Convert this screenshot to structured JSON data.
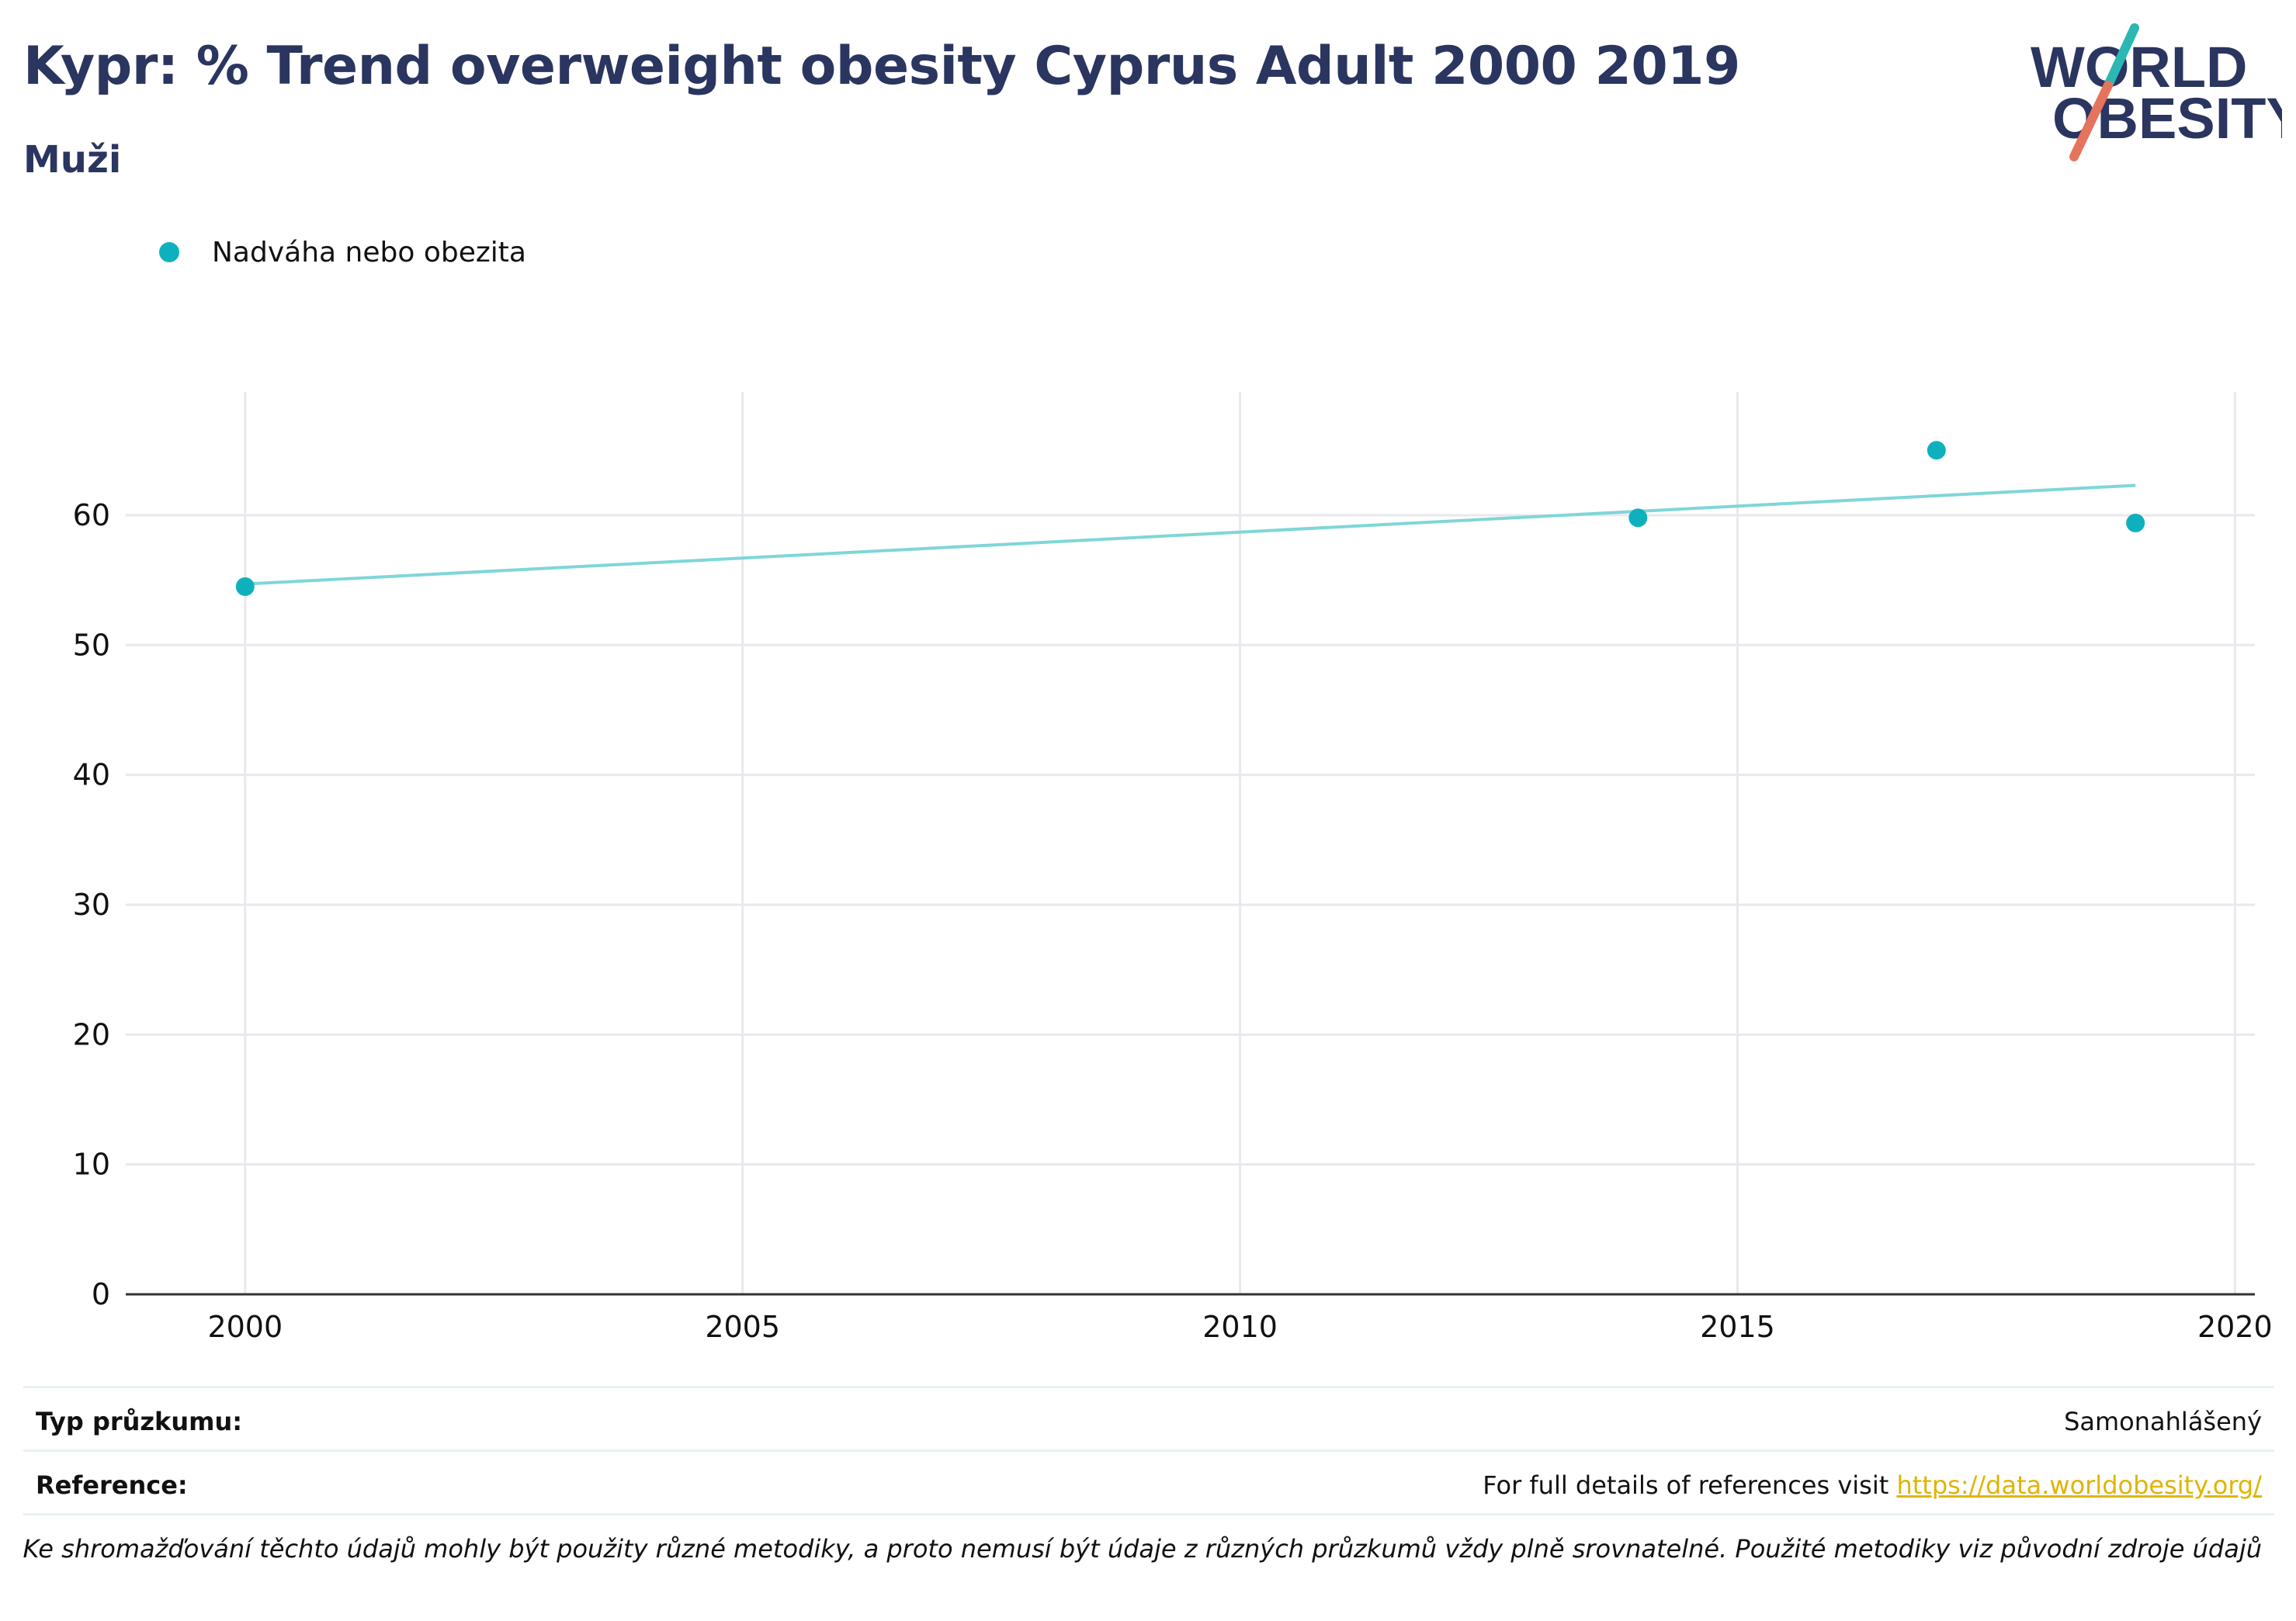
{
  "header": {
    "title": "Kypr: % Trend overweight obesity Cyprus Adult 2000 2019",
    "subtitle": "Muži"
  },
  "logo": {
    "line1": "WORLD",
    "line2": "OBESITY",
    "color_text": "#2a3560",
    "color_slash_top": "#2bb7b3",
    "color_slash_bottom": "#e5735e"
  },
  "colors": {
    "series": "#0fb0bd",
    "trend": "#7fd6d8",
    "grid": "#e8e8ee",
    "axis": "#333333",
    "link": "#e1b400"
  },
  "chart_data": {
    "type": "scatter",
    "legend_position": "top-left",
    "grid": true,
    "series": [
      {
        "name": "Nadváha nebo obezita",
        "x": [
          2000,
          2014,
          2017,
          2019
        ],
        "y": [
          54.5,
          59.8,
          65.0,
          59.4
        ]
      }
    ],
    "trendline": {
      "x": [
        2000,
        2019
      ],
      "y": [
        54.7,
        62.3
      ]
    },
    "xlim": [
      1998.8,
      2020.2
    ],
    "ylim": [
      0,
      69.5
    ],
    "xticks": [
      "2000",
      "2005",
      "2010",
      "2015",
      "2020"
    ],
    "yticks": [
      "0",
      "10",
      "20",
      "30",
      "40",
      "50",
      "60"
    ]
  },
  "info": {
    "survey_type_label": "Typ průzkumu:",
    "survey_type_value": "Samonahlášený",
    "reference_label": "Reference:",
    "reference_text": "For full details of references visit ",
    "reference_link": "https://data.worldobesity.org/",
    "note": "Ke shromažďování těchto údajů mohly být použity různé metodiky, a proto nemusí být údaje z různých průzkumů vždy plně srovnatelné. Použité metodiky viz původní zdroje údajů"
  }
}
